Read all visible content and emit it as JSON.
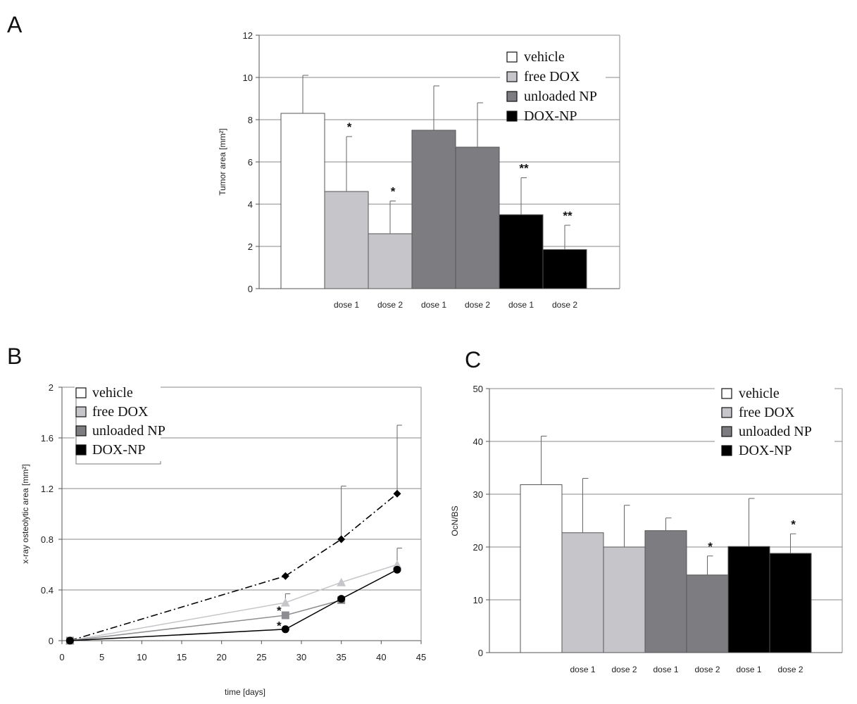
{
  "panels": {
    "a": "A",
    "b": "B",
    "c": "C"
  },
  "chart_data": [
    {
      "id": "A",
      "type": "bar",
      "ylabel": "Tumor area [mm²]",
      "ylim": [
        0,
        12
      ],
      "yticks": [
        0,
        2,
        4,
        6,
        8,
        10,
        12
      ],
      "grid": true,
      "categories": [
        "",
        "dose 1",
        "dose 2",
        "dose 1",
        "dose 2",
        "dose 1",
        "dose 2"
      ],
      "groups": [
        "vehicle",
        "free DOX",
        "free DOX",
        "unloaded NP",
        "unloaded NP",
        "DOX-NP",
        "DOX-NP"
      ],
      "values": [
        8.3,
        4.6,
        2.6,
        7.5,
        6.7,
        3.5,
        1.85
      ],
      "errors": [
        1.8,
        2.6,
        1.55,
        2.1,
        2.1,
        1.75,
        1.15
      ],
      "significance": [
        "",
        "*",
        "*",
        "",
        "",
        "**",
        "**"
      ],
      "legend": [
        "vehicle",
        "free DOX",
        "unloaded NP",
        "DOX-NP"
      ],
      "legend_colors": [
        "#ffffff",
        "#c6c5ca",
        "#7d7c80",
        "#000000"
      ],
      "legend_position": "top-right"
    },
    {
      "id": "B",
      "type": "line",
      "xlabel": "time [days]",
      "ylabel": "x-ray osteolytic area [mm²]",
      "xlim": [
        0,
        45
      ],
      "ylim": [
        0,
        2
      ],
      "xticks": [
        0,
        5,
        10,
        15,
        20,
        25,
        30,
        35,
        40,
        45
      ],
      "yticks": [
        0,
        0.4,
        0.8,
        1.2,
        1.6,
        2
      ],
      "grid": true,
      "legend": [
        "vehicle",
        "free DOX",
        "unloaded NP",
        "DOX-NP"
      ],
      "legend_colors": [
        "#ffffff",
        "#c6c5ca",
        "#7d7c80",
        "#000000"
      ],
      "legend_position": "top-left",
      "series": [
        {
          "name": "vehicle",
          "x": [
            1,
            28,
            35,
            42
          ],
          "y": [
            0,
            0.51,
            0.8,
            1.16
          ],
          "errors": [
            0,
            0,
            0.42,
            0.54
          ],
          "color": "#000000",
          "marker": "diamond",
          "dash": "dashdot"
        },
        {
          "name": "free DOX",
          "x": [
            1,
            28,
            35,
            42
          ],
          "y": [
            0,
            0.3,
            0.46,
            0.6
          ],
          "errors": [
            0,
            0.07,
            0,
            0.13
          ],
          "color": "#c6c5ca",
          "marker": "triangle",
          "dash": "solid"
        },
        {
          "name": "unloaded NP",
          "x": [
            1,
            28,
            35
          ],
          "y": [
            0,
            0.2,
            0.32
          ],
          "errors": [
            0,
            0,
            0
          ],
          "color": "#8e8d91",
          "marker": "square",
          "dash": "solid"
        },
        {
          "name": "DOX-NP",
          "x": [
            1,
            28,
            35,
            42
          ],
          "y": [
            0,
            0.09,
            0.33,
            0.56
          ],
          "errors": [
            0,
            0,
            0,
            0
          ],
          "color": "#000000",
          "marker": "circle",
          "dash": "solid"
        }
      ],
      "annotations": [
        {
          "text": "*",
          "x": 27.2,
          "y": 0.24
        },
        {
          "text": "*",
          "x": 27.2,
          "y": 0.12
        }
      ]
    },
    {
      "id": "C",
      "type": "bar",
      "ylabel": "OcN/BS",
      "ylim": [
        0,
        50
      ],
      "yticks": [
        0,
        10,
        20,
        30,
        40,
        50
      ],
      "grid": true,
      "categories": [
        "",
        "dose 1",
        "dose 2",
        "dose 1",
        "dose 2",
        "dose 1",
        "dose 2"
      ],
      "groups": [
        "vehicle",
        "free DOX",
        "free DOX",
        "unloaded NP",
        "unloaded NP",
        "DOX-NP",
        "DOX-NP"
      ],
      "values": [
        31.8,
        22.7,
        20.0,
        23.1,
        14.7,
        20.1,
        18.8
      ],
      "errors": [
        9.2,
        10.3,
        7.9,
        2.4,
        3.6,
        9.1,
        3.7
      ],
      "significance": [
        "",
        "",
        "",
        "",
        "*",
        "",
        "*"
      ],
      "legend": [
        "vehicle",
        "free DOX",
        "unloaded NP",
        "DOX-NP"
      ],
      "legend_colors": [
        "#ffffff",
        "#c6c5ca",
        "#7d7c80",
        "#000000"
      ],
      "legend_position": "top-right"
    }
  ]
}
